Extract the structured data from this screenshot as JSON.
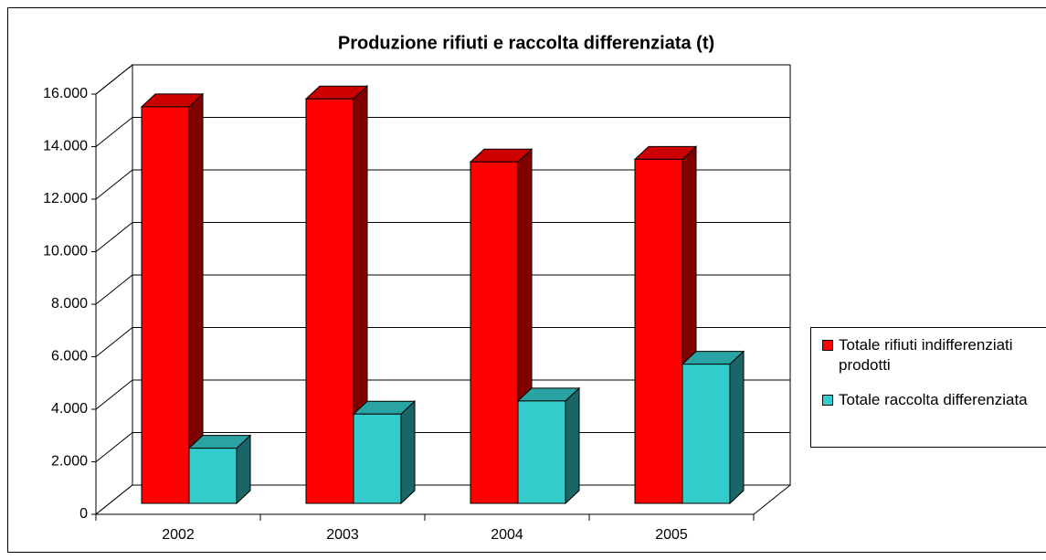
{
  "chart_data": {
    "type": "bar3d",
    "title": "Produzione rifiuti e raccolta differenziata (t)",
    "categories": [
      "2002",
      "2003",
      "2004",
      "2005"
    ],
    "series": [
      {
        "name": "Totale rifiuti indifferenziati prodotti",
        "color": "#ff0000",
        "values": [
          15100,
          15400,
          13000,
          13100
        ]
      },
      {
        "name": "Totale raccolta differenziata",
        "color": "#33cccc",
        "values": [
          2100,
          3400,
          3900,
          5300
        ]
      }
    ],
    "ylim": [
      0,
      16000
    ],
    "yticks": [
      0,
      {
        "value": 2000,
        "label": "2.000"
      },
      {
        "value": 4000,
        "label": "4.000"
      },
      {
        "value": 6000,
        "label": "6.000"
      },
      {
        "value": 8000,
        "label": "8.000"
      },
      {
        "value": 10000,
        "label": "10.000"
      },
      {
        "value": 12000,
        "label": "12.000"
      },
      {
        "value": 14000,
        "label": "14.000"
      },
      {
        "value": 16000,
        "label": "16.000"
      }
    ],
    "grid": true,
    "legend": "right"
  }
}
